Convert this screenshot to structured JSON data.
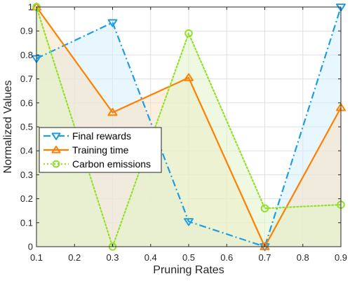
{
  "chart_data": {
    "type": "line",
    "xlabel": "Pruning Rates",
    "ylabel": "Normalized Values",
    "xlim": [
      0.1,
      0.9
    ],
    "ylim": [
      0,
      1
    ],
    "xticks": [
      "0.1",
      "0.2",
      "0.3",
      "0.4",
      "0.5",
      "0.6",
      "0.7",
      "0.8",
      "0.9"
    ],
    "yticks": [
      "0",
      "0.1",
      "0.2",
      "0.3",
      "0.4",
      "0.5",
      "0.6",
      "0.7",
      "0.8",
      "0.9",
      "1"
    ],
    "x": [
      0.1,
      0.3,
      0.5,
      0.7,
      0.9
    ],
    "grid": true,
    "legend_position": "left-center",
    "series": [
      {
        "name": "Final rewards",
        "values": [
          0.785,
          0.935,
          0.105,
          0.0,
          1.0
        ],
        "color": "#1f9de0",
        "fill": "#d6eefb",
        "marker": "triangle-down",
        "line_style": "dash-dot"
      },
      {
        "name": "Training time",
        "values": [
          1.0,
          0.56,
          0.705,
          0.0,
          0.58
        ],
        "color": "#ff8000",
        "fill": "#f8e2c4",
        "marker": "triangle-up",
        "line_style": "solid"
      },
      {
        "name": "Carbon emissions",
        "values": [
          1.0,
          0.0,
          0.89,
          0.16,
          0.175
        ],
        "color": "#92e02c",
        "fill": "#e2f4c8",
        "marker": "circle",
        "line_style": "dotted"
      }
    ]
  }
}
